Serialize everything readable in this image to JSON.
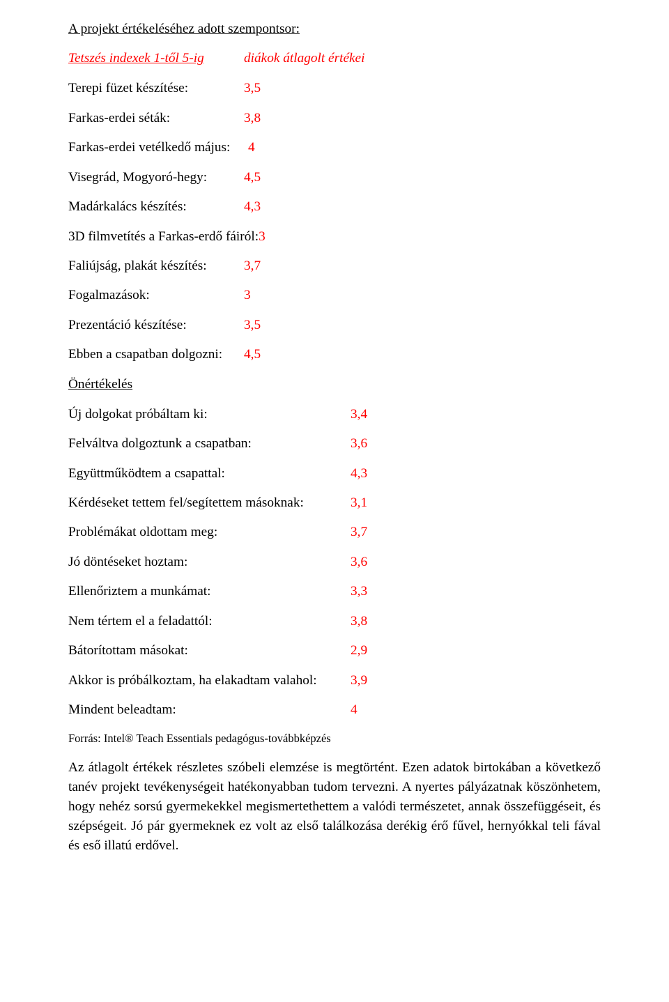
{
  "title": "A projekt értékeléséhez adott szempontsor:",
  "headerLeft": "Tetszés indexek 1-től 5-ig",
  "headerRight": "diákok átlagolt értékei",
  "section1": [
    {
      "label": "Terepi füzet készítése:",
      "value": "3,5"
    },
    {
      "label": "Farkas-erdei séták:",
      "value": "3,8"
    },
    {
      "label": "Farkas-erdei vetélkedő május:",
      "value": "4",
      "labelWidth": 258
    },
    {
      "label": "Visegrád, Mogyoró-hegy:",
      "value": "4,5"
    },
    {
      "label": "Madárkalács készítés:",
      "value": "4,3"
    }
  ],
  "filmRow": {
    "prefix": "3D filmvetítés a Farkas-erdő fáiról:",
    "value": "3"
  },
  "section1b": [
    {
      "label": "Faliújság, plakát készítés:",
      "value": "3,7"
    },
    {
      "label": "Fogalmazások:",
      "value": "3"
    },
    {
      "label": "Prezentáció készítése:",
      "value": "3,5"
    },
    {
      "label": "Ebben a csapatban dolgozni:",
      "value": "4,5"
    }
  ],
  "selfEvalTitle": "Önértékelés",
  "section2": [
    {
      "label": "Új dolgokat próbáltam ki:",
      "value": "3,4"
    },
    {
      "label": "Felváltva dolgoztunk a csapatban:",
      "value": "3,6"
    },
    {
      "label": "Együttműködtem a csapattal:",
      "value": "4,3"
    },
    {
      "label": "Kérdéseket tettem fel/segítettem másoknak:",
      "value": "3,1"
    },
    {
      "label": "Problémákat oldottam meg:",
      "value": "3,7"
    },
    {
      "label": "Jó döntéseket hoztam:",
      "value": "3,6"
    },
    {
      "label": "Ellenőriztem a munkámat:",
      "value": "3,3"
    },
    {
      "label": "Nem tértem el a feladattól:",
      "value": "3,8"
    },
    {
      "label": "Bátorítottam másokat:",
      "value": "2,9"
    },
    {
      "label": "Akkor is próbálkoztam, ha elakadtam valahol:",
      "value": "3,9"
    },
    {
      "label": "Mindent beleadtam:",
      "value": "4"
    }
  ],
  "sourceLabel": "Forrás: ",
  "sourceText": "Intel® Teach Essentials pedagógus-továbbképzés",
  "paragraph": "Az átlagolt értékek  részletes szóbeli elemzése is megtörtént. Ezen adatok birtokában a következő tanév projekt tevékenységeit hatékonyabban tudom tervezni. A nyertes pályázatnak köszönhetem, hogy nehéz sorsú gyermekekkel megismertethettem a valódi természetet, annak összefüggéseit, és szépségeit. Jó pár gyermeknek ez volt az első találkozása derékig érő fűvel, hernyókkal teli fával és eső illatú erdővel.",
  "colors": {
    "text": "#000000",
    "accent": "#ff0000",
    "background": "#ffffff"
  }
}
